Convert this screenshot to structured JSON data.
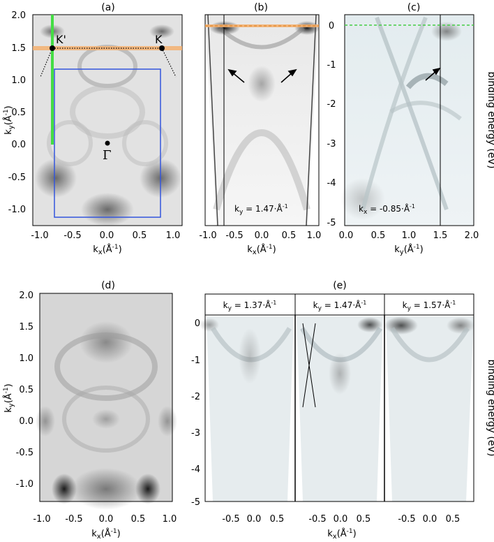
{
  "figure": {
    "panels": {
      "a": {
        "title": "(a)",
        "xlabel": "k_x(Å^-1)",
        "ylabel": "k_y(Å^-1)",
        "xticks": [
          "-1.0",
          "-0.5",
          "0.0",
          "0.5",
          "1.0"
        ],
        "yticks": [
          "2.0",
          "1.5",
          "1.0",
          "0.5",
          "0.0",
          "-0.5",
          "-1.0"
        ],
        "points": [
          {
            "label": "K'",
            "kx": -0.85,
            "ky": 1.47
          },
          {
            "label": "K",
            "kx": 0.85,
            "ky": 1.47
          },
          {
            "label": "Γ",
            "kx": 0.0,
            "ky": 0.0
          }
        ],
        "xlim": [
          -1.1,
          1.1
        ],
        "ylim": [
          -1.3,
          2.0
        ]
      },
      "b": {
        "title": "(b)",
        "xlabel": "k_x(Å^-1)",
        "xticks": [
          "-1.0",
          "-0.5",
          "0.0",
          "0.5",
          "1.0"
        ],
        "annotation": "k_y = 1.47·Å^-1"
      },
      "c": {
        "title": "(c)",
        "xlabel": "k_y(Å^-1)",
        "xticks": [
          "0.0",
          "0.5",
          "1.0",
          "1.5",
          "2.0"
        ],
        "annotation": "k_x = -0.85·Å^-1",
        "right_axis_label": "binding energy (eV)",
        "yticks": [
          "0",
          "-1",
          "-2",
          "-3",
          "-4",
          "-5"
        ]
      },
      "d": {
        "title": "(d)",
        "xlabel": "k_x(Å^-1)",
        "ylabel": "k_y(Å^-1)",
        "xticks": [
          "-1.0",
          "-0.5",
          "0.0",
          "0.5",
          "1.0"
        ],
        "yticks": [
          "2.0",
          "1.5",
          "1.0",
          "0.5",
          "0.0",
          "-0.5",
          "-1.0"
        ]
      },
      "e": {
        "title": "(e)",
        "xlabel": "k_x(Å^-1)",
        "subpanels": [
          "k_y = 1.37·Å^-1",
          "k_y = 1.47·Å^-1",
          "k_y = 1.57·Å^-1"
        ],
        "xticks": [
          "-0.5",
          "0.0",
          "0.5"
        ],
        "yticks": [
          "0",
          "-1",
          "-2",
          "-3",
          "-4",
          "-5"
        ],
        "right_axis_label": "binding energy (eV)"
      }
    }
  }
}
